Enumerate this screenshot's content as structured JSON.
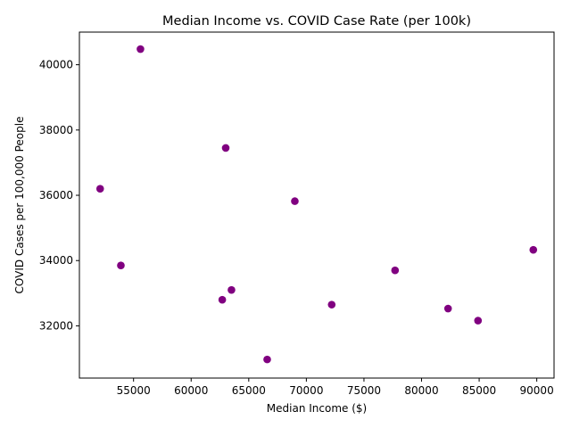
{
  "chart_data": {
    "type": "scatter",
    "title": "Median Income vs. COVID Case Rate (per 100k)",
    "xlabel": "Median Income ($)",
    "ylabel": "COVID Cases per 100,000 People",
    "xlim": [
      50300,
      91500
    ],
    "ylim": [
      30400,
      41000
    ],
    "xticks": [
      55000,
      60000,
      65000,
      70000,
      75000,
      80000,
      85000,
      90000
    ],
    "yticks": [
      32000,
      34000,
      36000,
      38000,
      40000
    ],
    "grid": false,
    "marker_color": "#800080",
    "points": [
      {
        "x": 55600,
        "y": 40480
      },
      {
        "x": 63000,
        "y": 37450
      },
      {
        "x": 52100,
        "y": 36200
      },
      {
        "x": 69000,
        "y": 35820
      },
      {
        "x": 89700,
        "y": 34330
      },
      {
        "x": 53900,
        "y": 33850
      },
      {
        "x": 77700,
        "y": 33700
      },
      {
        "x": 63500,
        "y": 33100
      },
      {
        "x": 62700,
        "y": 32800
      },
      {
        "x": 72200,
        "y": 32650
      },
      {
        "x": 82300,
        "y": 32530
      },
      {
        "x": 84900,
        "y": 32160
      },
      {
        "x": 66600,
        "y": 30970
      }
    ]
  }
}
